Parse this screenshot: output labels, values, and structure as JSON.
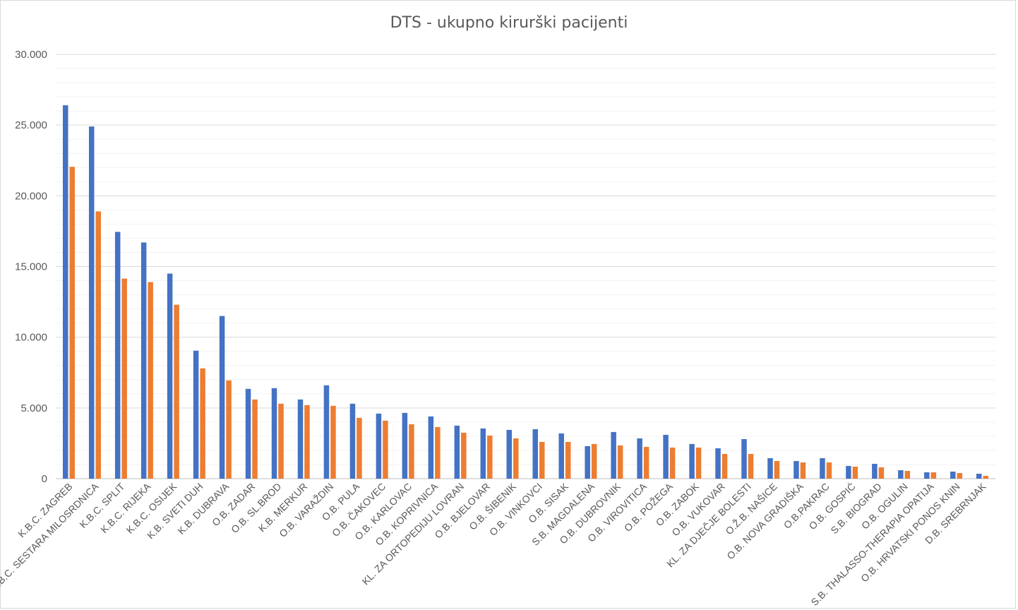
{
  "chart_data": {
    "type": "bar",
    "title": "DTS - ukupno kirurški pacijenti",
    "xlabel": "",
    "ylabel": "",
    "ylim": [
      0,
      30000
    ],
    "y_ticks": [
      "0",
      "5.000",
      "10.000",
      "15.000",
      "20.000",
      "25.000",
      "30.000"
    ],
    "y_tick_values": [
      0,
      5000,
      10000,
      15000,
      20000,
      25000,
      30000
    ],
    "grid": true,
    "legend": "none",
    "categories": [
      "K.B.C. ZAGREB",
      "K.B.C. SESTARA MILOSRDNICA",
      "K.B.C. SPLIT",
      "K.B.C. RIJEKA",
      "K.B.C. OSIJEK",
      "K.B. SVETI DUH",
      "K.B. DUBRAVA",
      "O.B. ZADAR",
      "O.B. SL.BROD",
      "K.B. MERKUR",
      "O.B. VARAŽDIN",
      "O.B. PULA",
      "O.B. ČAKOVEC",
      "O.B. KARLOVAC",
      "O.B. KOPRIVNICA",
      "KL. ZA ORTOPEDIJU LOVRAN",
      "O.B. BJELOVAR",
      "O.B. ŠIBENIK",
      "O.B. VINKOVCI",
      "O.B. SISAK",
      "S.B. MAGDALENA",
      "O.B. DUBROVNIK",
      "O.B. VIROVITICA",
      "O.B. POŽEGA",
      "O.B. ZABOK",
      "O.B. VUKOVAR",
      "KL. ZA DJEČJE BOLESTI",
      "O.Ž.B. NAŠICE",
      "O.B. NOVA GRADIŠKA",
      "O.B.PAKRAC",
      "O.B. GOSPIĆ",
      "S.B. BIOGRAD",
      "O.B. OGULIN",
      "S.B. THALASSO-THERAPIA OPATIJA",
      "O.B. HRVATSKI PONOS KNIN",
      "D.B. SREBRNJAK"
    ],
    "series": [
      {
        "color": "#4472c4",
        "values": [
          26400,
          24900,
          17450,
          16700,
          14500,
          9050,
          11500,
          6350,
          6400,
          5600,
          6600,
          5300,
          4600,
          4650,
          4400,
          3750,
          3550,
          3450,
          3500,
          3200,
          2300,
          3300,
          2850,
          3100,
          2450,
          2150,
          2800,
          1450,
          1250,
          1450,
          900,
          1050,
          600,
          450,
          500,
          350
        ]
      },
      {
        "color": "#ed7d31",
        "values": [
          22050,
          18900,
          14150,
          13900,
          12300,
          7800,
          6950,
          5600,
          5300,
          5200,
          5150,
          4300,
          4100,
          3850,
          3650,
          3250,
          3050,
          2850,
          2600,
          2600,
          2450,
          2350,
          2250,
          2200,
          2200,
          1750,
          1750,
          1250,
          1150,
          1150,
          850,
          800,
          550,
          450,
          400,
          200
        ]
      }
    ]
  }
}
